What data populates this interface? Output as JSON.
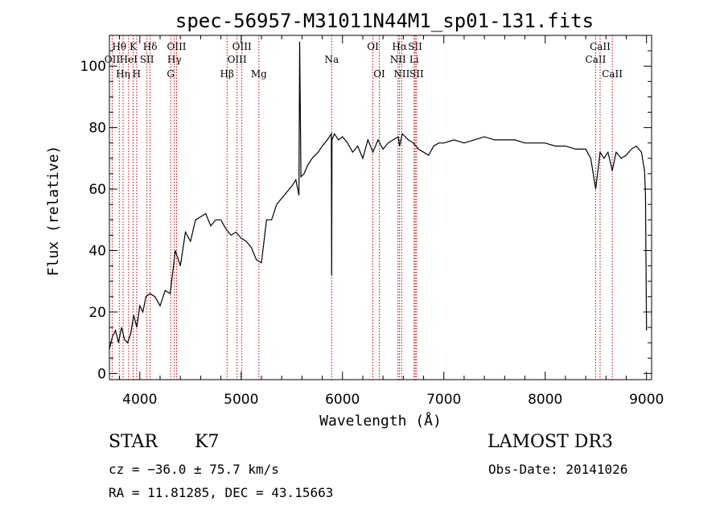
{
  "chart_data": {
    "type": "line",
    "title": "spec-56957-M31011N44M1_sp01-131.fits",
    "xlabel": "Wavelength (Å)",
    "ylabel": "Flux (relative)",
    "xlim": [
      3700,
      9050
    ],
    "ylim": [
      -2,
      110
    ],
    "xticks": [
      4000,
      5000,
      6000,
      7000,
      8000,
      9000
    ],
    "yticks": [
      0,
      20,
      40,
      60,
      80,
      100
    ],
    "ytick_labels": [
      "0",
      "20",
      "40",
      "60",
      "80",
      "100"
    ],
    "series": [
      {
        "name": "spectrum",
        "x": [
          3700,
          3730,
          3760,
          3790,
          3820,
          3850,
          3880,
          3910,
          3940,
          3970,
          4000,
          4030,
          4060,
          4100,
          4150,
          4200,
          4250,
          4300,
          4350,
          4400,
          4450,
          4500,
          4550,
          4600,
          4650,
          4700,
          4750,
          4800,
          4850,
          4900,
          4950,
          5000,
          5050,
          5100,
          5150,
          5200,
          5250,
          5300,
          5350,
          5400,
          5450,
          5500,
          5540,
          5570,
          5577,
          5590,
          5620,
          5660,
          5700,
          5760,
          5800,
          5850,
          5890,
          5893,
          5896,
          5920,
          5960,
          6000,
          6050,
          6100,
          6150,
          6200,
          6250,
          6300,
          6350,
          6400,
          6450,
          6500,
          6550,
          6563,
          6590,
          6650,
          6700,
          6750,
          6800,
          6850,
          6900,
          6950,
          7000,
          7100,
          7200,
          7300,
          7400,
          7500,
          7600,
          7700,
          7800,
          7900,
          8000,
          8100,
          8200,
          8300,
          8400,
          8450,
          8498,
          8542,
          8580,
          8620,
          8662,
          8700,
          8750,
          8800,
          8850,
          8900,
          8950,
          8980,
          8990,
          9000
        ],
        "values": [
          8,
          12,
          14,
          10,
          15,
          11,
          10,
          13,
          19,
          15,
          22,
          20,
          25,
          26,
          25,
          22,
          27,
          26,
          40,
          35,
          46,
          43,
          50,
          51,
          52,
          48,
          50,
          50,
          47,
          45,
          46,
          44,
          43,
          41,
          37,
          36,
          50,
          50,
          55,
          57,
          59,
          61,
          63,
          58,
          108,
          64,
          65,
          68,
          70,
          72,
          74,
          76,
          78,
          32,
          76,
          78,
          76,
          77,
          75,
          72,
          74,
          70,
          76,
          72,
          76,
          73,
          75,
          76,
          77,
          74,
          78,
          76,
          75,
          73,
          72,
          71,
          74,
          75,
          75,
          76,
          75,
          76,
          77,
          76,
          76,
          76,
          75,
          75,
          75,
          74,
          74,
          73,
          73,
          70,
          60,
          72,
          70,
          72,
          66,
          72,
          70,
          71,
          73,
          74,
          72,
          66,
          58,
          14
        ]
      }
    ],
    "emission_lines": [
      {
        "label": "Hθ",
        "wavelength": 3797,
        "row": 1
      },
      {
        "label": "OII",
        "wavelength": 3727,
        "row": 2
      },
      {
        "label": "Hη",
        "wavelength": 3835,
        "row": 3
      },
      {
        "label": "K",
        "wavelength": 3934,
        "row": 1
      },
      {
        "label": "HeI",
        "wavelength": 3889,
        "row": 2
      },
      {
        "label": "H",
        "wavelength": 3969,
        "row": 3
      },
      {
        "label": "SII",
        "wavelength": 4070,
        "row": 2
      },
      {
        "label": "Hδ",
        "wavelength": 4102,
        "row": 1
      },
      {
        "label": "OIII",
        "wavelength": 4363,
        "row": 1
      },
      {
        "label": "Hγ",
        "wavelength": 4341,
        "row": 2
      },
      {
        "label": "G",
        "wavelength": 4305,
        "row": 3
      },
      {
        "label": "Hβ",
        "wavelength": 4861,
        "row": 3
      },
      {
        "label": "OIII",
        "wavelength": 4959,
        "row": 2
      },
      {
        "label": "OIII",
        "wavelength": 5007,
        "row": 1
      },
      {
        "label": "Mg",
        "wavelength": 5175,
        "row": 3
      },
      {
        "label": "Na",
        "wavelength": 5893,
        "row": 2
      },
      {
        "label": "OI",
        "wavelength": 6300,
        "row": 1
      },
      {
        "label": "OI",
        "wavelength": 6363,
        "row": 3
      },
      {
        "label": "NII",
        "wavelength": 6548,
        "row": 2
      },
      {
        "label": "Hα",
        "wavelength": 6563,
        "row": 1
      },
      {
        "label": "NII",
        "wavelength": 6584,
        "row": 3
      },
      {
        "label": "SII",
        "wavelength": 6717,
        "row": 1
      },
      {
        "label": "Li",
        "wavelength": 6707,
        "row": 2
      },
      {
        "label": "SII",
        "wavelength": 6731,
        "row": 3
      },
      {
        "label": "CaII",
        "wavelength": 8498,
        "row": 2
      },
      {
        "label": "CaII",
        "wavelength": 8542,
        "row": 1
      },
      {
        "label": "CaII",
        "wavelength": 8662,
        "row": 3
      }
    ]
  },
  "info": {
    "object_class": "STAR",
    "subclass": "K7",
    "cz": "cz = −36.0 ± 75.7 km/s",
    "coords": "RA =  11.81285, DEC =  43.15663",
    "survey": "LAMOST DR3",
    "obs_date": "Obs-Date: 20141026"
  },
  "colors": {
    "spectrum": "#000000",
    "line_markers": "#c00000"
  }
}
